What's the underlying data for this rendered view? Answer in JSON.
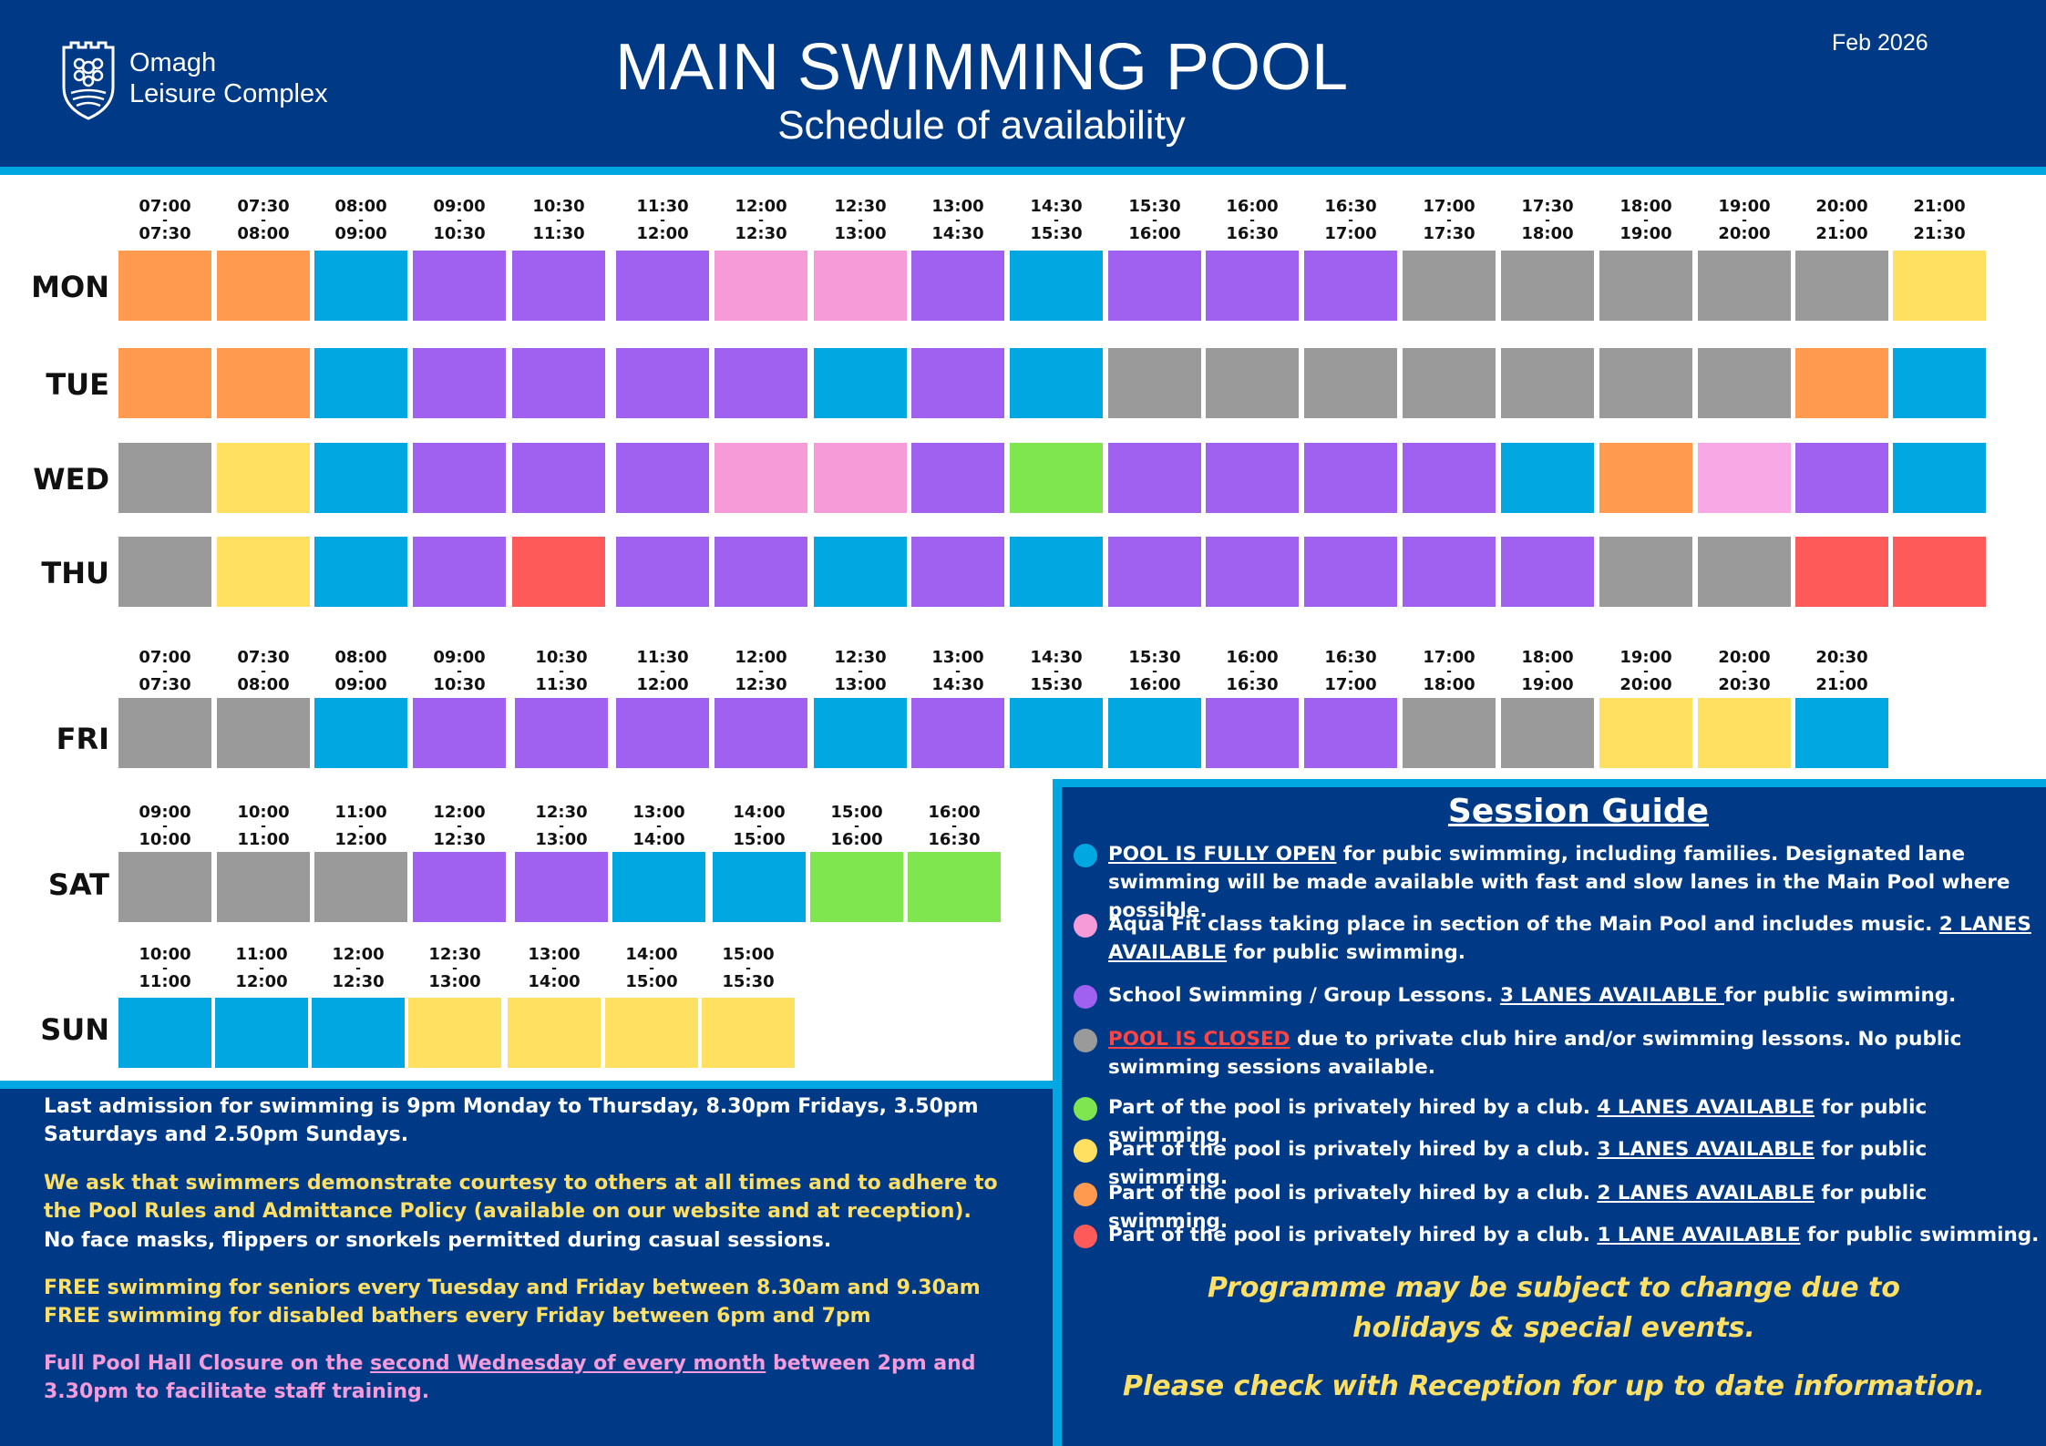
{
  "header": {
    "logo_line1": "Omagh",
    "logo_line2": "Leisure Complex",
    "title": "MAIN SWIMMING POOL",
    "subtitle": "Schedule of availability",
    "date": "Feb 2026"
  },
  "colors": {
    "open": "#00a7e1",
    "aquafit_pink": "#f79ad8",
    "aquafit_pink_light": "#f8a8e4",
    "lessons": "#a060f0",
    "closed": "#9a9a9a",
    "green": "#80e650",
    "yellow": "#ffe060",
    "orange": "#ff9a4e",
    "red": "#ff5a5a",
    "navy": "#003a86",
    "accent": "#00a7e1"
  },
  "schedule": {
    "weekday_times": [
      {
        "start": "07:00",
        "end": "07:30"
      },
      {
        "start": "07:30",
        "end": "08:00"
      },
      {
        "start": "08:00",
        "end": "09:00"
      },
      {
        "start": "09:00",
        "end": "10:30"
      },
      {
        "start": "10:30",
        "end": "11:30"
      },
      {
        "start": "11:30",
        "end": "12:00"
      },
      {
        "start": "12:00",
        "end": "12:30"
      },
      {
        "start": "12:30",
        "end": "13:00"
      },
      {
        "start": "13:00",
        "end": "14:30"
      },
      {
        "start": "14:30",
        "end": "15:30"
      },
      {
        "start": "15:30",
        "end": "16:00"
      },
      {
        "start": "16:00",
        "end": "16:30"
      },
      {
        "start": "16:30",
        "end": "17:00"
      },
      {
        "start": "17:00",
        "end": "17:30"
      },
      {
        "start": "17:30",
        "end": "18:00"
      },
      {
        "start": "18:00",
        "end": "19:00"
      },
      {
        "start": "19:00",
        "end": "20:00"
      },
      {
        "start": "20:00",
        "end": "21:00"
      },
      {
        "start": "21:00",
        "end": "21:30"
      }
    ],
    "mon": {
      "label": "MON",
      "cells": [
        "orange",
        "orange",
        "open",
        "lessons",
        "lessons",
        "lessons",
        "aquafit_pink",
        "aquafit_pink",
        "lessons",
        "open",
        "lessons",
        "lessons",
        "lessons",
        "closed",
        "closed",
        "closed",
        "closed",
        "closed",
        "yellow"
      ]
    },
    "tue": {
      "label": "TUE",
      "cells": [
        "orange",
        "orange",
        "open",
        "lessons",
        "lessons",
        "lessons",
        "lessons",
        "open",
        "lessons",
        "open",
        "closed",
        "closed",
        "closed",
        "closed",
        "closed",
        "closed",
        "closed",
        "orange",
        "open"
      ]
    },
    "wed": {
      "label": "WED",
      "cells": [
        "closed",
        "yellow",
        "open",
        "lessons",
        "lessons",
        "lessons",
        "aquafit_pink",
        "aquafit_pink",
        "lessons",
        "green",
        "lessons",
        "lessons",
        "lessons",
        "lessons",
        "open",
        "orange",
        "aquafit_pink_light",
        "lessons",
        "open"
      ]
    },
    "thu": {
      "label": "THU",
      "cells": [
        "closed",
        "yellow",
        "open",
        "lessons",
        "red",
        "lessons",
        "lessons",
        "open",
        "lessons",
        "open",
        "lessons",
        "lessons",
        "lessons",
        "lessons",
        "lessons",
        "closed",
        "closed",
        "red",
        "red"
      ]
    },
    "fri": {
      "label": "FRI",
      "times": [
        {
          "start": "07:00",
          "end": "07:30"
        },
        {
          "start": "07:30",
          "end": "08:00"
        },
        {
          "start": "08:00",
          "end": "09:00"
        },
        {
          "start": "09:00",
          "end": "10:30"
        },
        {
          "start": "10:30",
          "end": "11:30"
        },
        {
          "start": "11:30",
          "end": "12:00"
        },
        {
          "start": "12:00",
          "end": "12:30"
        },
        {
          "start": "12:30",
          "end": "13:00"
        },
        {
          "start": "13:00",
          "end": "14:30"
        },
        {
          "start": "14:30",
          "end": "15:30"
        },
        {
          "start": "15:30",
          "end": "16:00"
        },
        {
          "start": "16:00",
          "end": "16:30"
        },
        {
          "start": "16:30",
          "end": "17:00"
        },
        {
          "start": "17:00",
          "end": "18:00"
        },
        {
          "start": "18:00",
          "end": "19:00"
        },
        {
          "start": "19:00",
          "end": "20:00"
        },
        {
          "start": "20:00",
          "end": "20:30"
        },
        {
          "start": "20:30",
          "end": "21:00"
        }
      ],
      "cells": [
        "closed",
        "closed",
        "open",
        "lessons",
        "lessons",
        "lessons",
        "lessons",
        "open",
        "lessons",
        "open",
        "open",
        "lessons",
        "lessons",
        "closed",
        "closed",
        "yellow",
        "yellow",
        "open"
      ]
    },
    "sat": {
      "label": "SAT",
      "times": [
        {
          "start": "09:00",
          "end": "10:00"
        },
        {
          "start": "10:00",
          "end": "11:00"
        },
        {
          "start": "11:00",
          "end": "12:00"
        },
        {
          "start": "12:00",
          "end": "12:30"
        },
        {
          "start": "12:30",
          "end": "13:00"
        },
        {
          "start": "13:00",
          "end": "14:00"
        },
        {
          "start": "14:00",
          "end": "15:00"
        },
        {
          "start": "15:00",
          "end": "16:00"
        },
        {
          "start": "16:00",
          "end": "16:30"
        }
      ],
      "cells": [
        "closed",
        "closed",
        "closed",
        "lessons",
        "lessons",
        "open",
        "open",
        "green",
        "green"
      ]
    },
    "sun": {
      "label": "SUN",
      "times": [
        {
          "start": "10:00",
          "end": "11:00"
        },
        {
          "start": "11:00",
          "end": "12:00"
        },
        {
          "start": "12:00",
          "end": "12:30"
        },
        {
          "start": "12:30",
          "end": "13:00"
        },
        {
          "start": "13:00",
          "end": "14:00"
        },
        {
          "start": "14:00",
          "end": "15:00"
        },
        {
          "start": "15:00",
          "end": "15:30"
        }
      ],
      "cells": [
        "open",
        "open",
        "open",
        "yellow",
        "yellow",
        "yellow",
        "yellow"
      ]
    }
  },
  "notes": {
    "admission": "Last admission for swimming is 9pm Monday to Thursday, 8.30pm Fridays, 3.50pm Saturdays and 2.50pm Sundays.",
    "courtesy": "We ask that swimmers demonstrate courtesy to others at all times and to adhere to the Pool Rules and Admittance Policy (available on our website and at reception).",
    "masks": "No face masks, flippers or snorkels permitted during casual sessions.",
    "seniors": "FREE swimming for seniors every Tuesday and Friday between 8.30am and 9.30am",
    "disabled": "FREE swimming for disabled bathers every Friday between 6pm and 7pm",
    "closure_pre": "Full Pool Hall Closure on the ",
    "closure_link": "second Wednesday of every month",
    "closure_post": " between 2pm and 3.30pm to facilitate staff training."
  },
  "guide": {
    "title": "Session Guide",
    "items": [
      {
        "color": "open",
        "pre": "",
        "u": "POOL IS FULLY OPEN",
        "post": " for pubic swimming, including families. Designated lane swimming will be made available with fast and slow lanes in the Main Pool where possible."
      },
      {
        "color": "aquafit_pink",
        "pre": "Aqua Fit class taking place in section of the Main Pool and includes music. ",
        "u": "2 LANES AVAILABLE",
        "post": " for public swimming."
      },
      {
        "color": "lessons",
        "pre": "School Swimming / Group Lessons.  ",
        "u": "3 LANES AVAILABLE ",
        "post": "for public swimming."
      },
      {
        "color": "closed",
        "pre": "",
        "u": "POOL IS CLOSED",
        "post": " due to private club hire and/or swimming lessons. No public swimming sessions available."
      },
      {
        "color": "green",
        "pre": "Part of the pool is privately hired by a club.  ",
        "u": "4 LANES AVAILABLE",
        "post": " for public swimming."
      },
      {
        "color": "yellow",
        "pre": "Part of the pool is privately hired by a club.  ",
        "u": "3 LANES AVAILABLE",
        "post": " for public swimming."
      },
      {
        "color": "orange",
        "pre": "Part of the pool is privately hired by a club.  ",
        "u": "2 LANES AVAILABLE",
        "post": " for public swimming."
      },
      {
        "color": "red",
        "pre": "Part of the pool is privately hired by a club.  ",
        "u": "1 LANE AVAILABLE",
        "post": " for public swimming."
      }
    ],
    "programme_line1": "Programme may be subject to change due to",
    "programme_line2": "holidays & special events.",
    "reception": "Please check with Reception for up to date information."
  }
}
